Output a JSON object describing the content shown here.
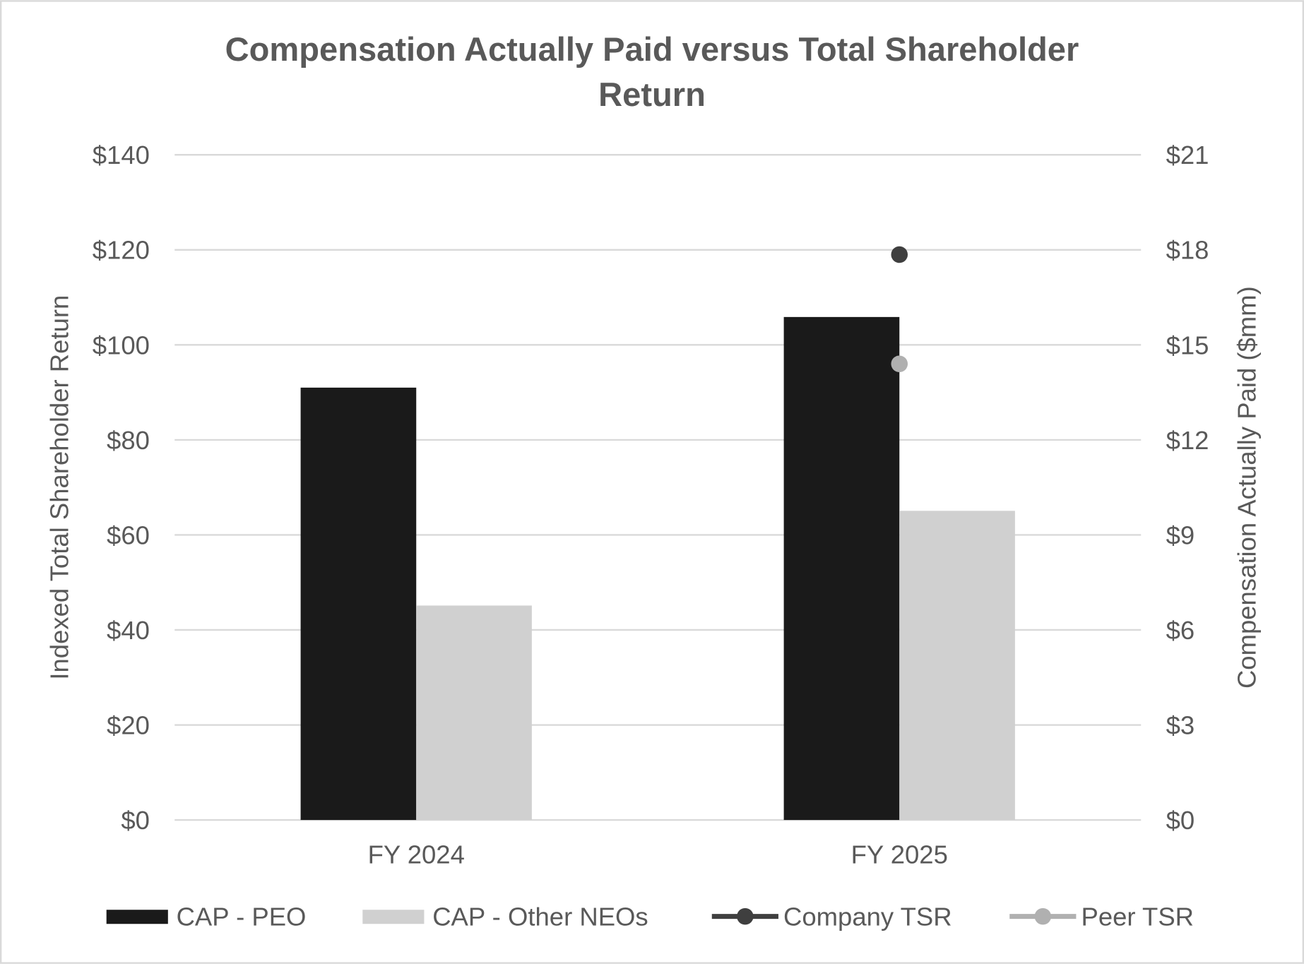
{
  "chart_data": {
    "type": "bar",
    "title": "Compensation Actually Paid versus Total Shareholder Return",
    "title_lines": [
      "Compensation Actually Paid versus Total Shareholder",
      "Return"
    ],
    "categories": [
      "FY 2024",
      "FY 2025"
    ],
    "y_left": {
      "label": "Indexed Total Shareholder Return",
      "range": [
        0,
        140
      ],
      "ticks": [
        0,
        20,
        40,
        60,
        80,
        100,
        120,
        140
      ],
      "tick_labels": [
        "$0",
        "$20",
        "$40",
        "$60",
        "$80",
        "$100",
        "$120",
        "$140"
      ]
    },
    "y_right": {
      "label": "Compensation Actually Paid ($mm)",
      "range": [
        0,
        21
      ],
      "ticks": [
        0,
        3,
        6,
        9,
        12,
        15,
        18,
        21
      ],
      "tick_labels": [
        "$0",
        "$3",
        "$6",
        "$9",
        "$12",
        "$15",
        "$18",
        "$21"
      ]
    },
    "grid": true,
    "legend_position": "bottom",
    "series": [
      {
        "name": "CAP - PEO",
        "type": "bar",
        "axis": "right",
        "color": "#1a1a1a",
        "values": [
          13.65,
          15.88
        ]
      },
      {
        "name": "CAP - Other NEOs",
        "type": "bar",
        "axis": "right",
        "color": "#d0d0d0",
        "values": [
          6.77,
          9.76
        ]
      },
      {
        "name": "Company TSR",
        "type": "line",
        "axis": "left",
        "color": "#3f3f3f",
        "values": [
          null,
          119
        ]
      },
      {
        "name": "Peer TSR",
        "type": "line",
        "axis": "left",
        "color": "#b0b0b0",
        "values": [
          null,
          96
        ]
      }
    ]
  }
}
